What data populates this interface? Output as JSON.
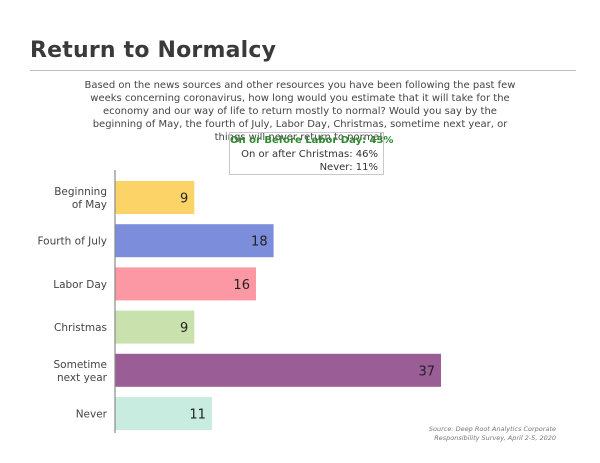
{
  "header": {
    "title": "Return to Normalcy",
    "question": "Based on the news sources and other resources you have been following the past few weeks concerning coronavirus, how long would you estimate that it will take for the economy and our way of life to return mostly to normal? Would you say by the beginning of May, the fourth of July, Labor Day, Christmas, sometime next year, or things will never return to normal."
  },
  "summary": {
    "line1": "On or Before Labor Day: 43%",
    "line2": "On or after Christmas: 46%",
    "line3": "Never: 11%",
    "highlight_color": "#2f8a2f"
  },
  "source": {
    "line1": "Source: Deep Root Analytics Corporate",
    "line2": "Responsibility Survey, April 2-5, 2020"
  },
  "chart_data": {
    "type": "bar",
    "orientation": "horizontal",
    "title": "Return to Normalcy",
    "categories": [
      [
        "Beginning",
        "of May"
      ],
      [
        "Fourth of July"
      ],
      [
        "Labor Day"
      ],
      [
        "Christmas"
      ],
      [
        "Sometime",
        "next year"
      ],
      [
        "Never"
      ]
    ],
    "values": [
      9,
      18,
      16,
      9,
      37,
      11
    ],
    "colors": [
      "#fcd367",
      "#7b8ddb",
      "#fb98a4",
      "#c9e2ad",
      "#9b5d96",
      "#c9ece0"
    ],
    "xlim": [
      0,
      40
    ],
    "grid": false,
    "legend": "none"
  }
}
